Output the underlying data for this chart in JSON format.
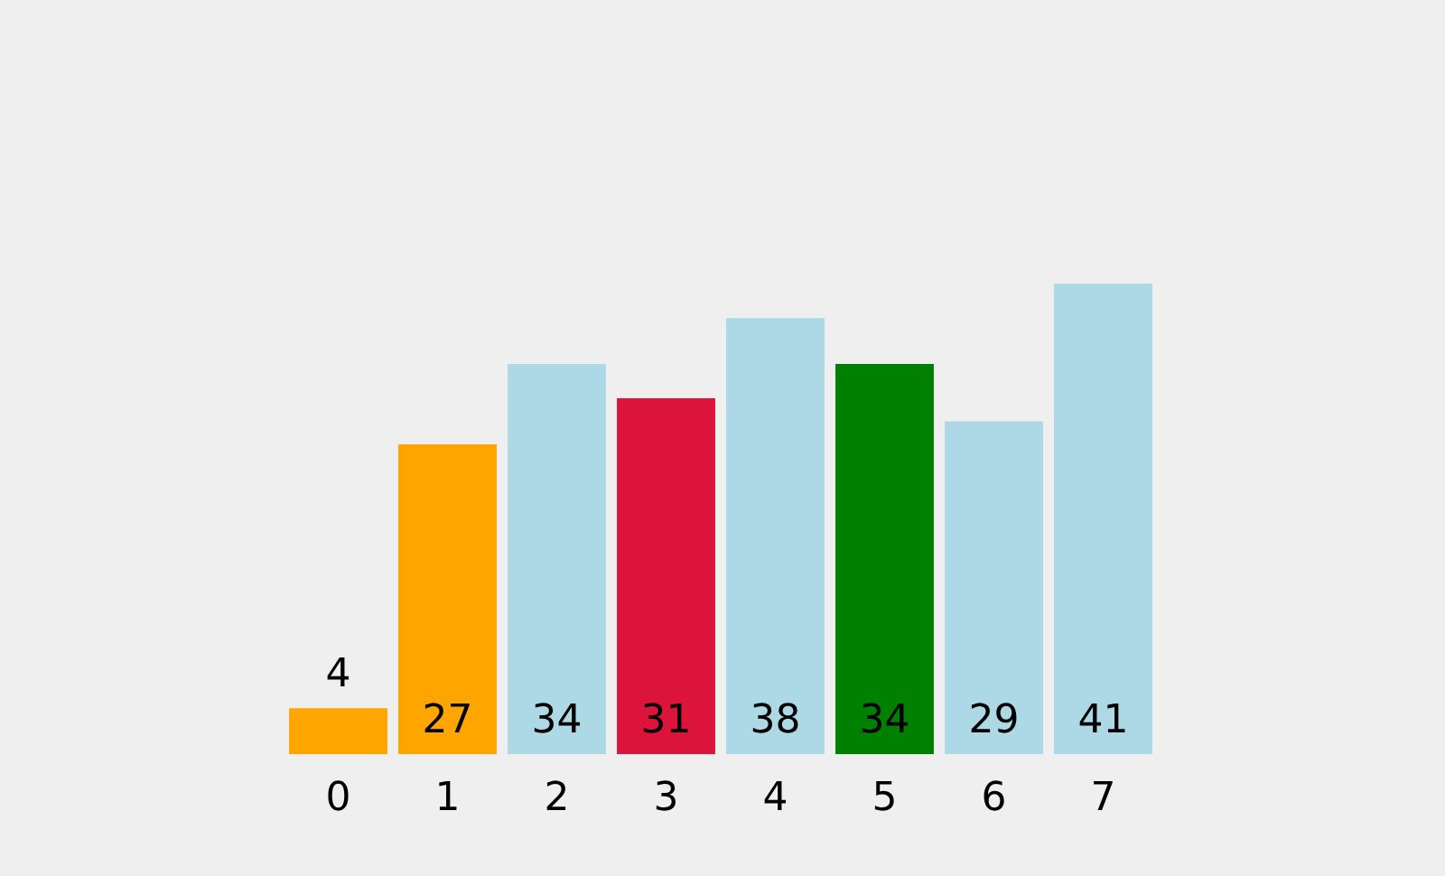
{
  "chart_data": {
    "type": "bar",
    "categories": [
      "0",
      "1",
      "2",
      "3",
      "4",
      "5",
      "6",
      "7"
    ],
    "values": [
      4,
      27,
      34,
      31,
      38,
      34,
      29,
      41
    ],
    "colors": [
      "#ffa500",
      "#ffa500",
      "#add8e6",
      "#dc143c",
      "#add8e6",
      "#008000",
      "#add8e6",
      "#add8e6"
    ],
    "data_labels": true
  }
}
